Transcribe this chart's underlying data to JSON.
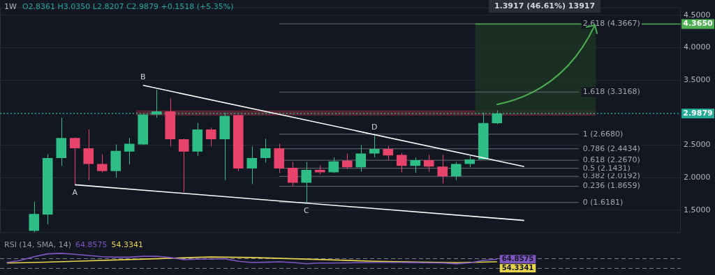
{
  "chart_data": [
    {
      "type": "candlestick",
      "title": "1W",
      "subtitle": "O2.8361 H3.0350 L2.8207 C2.9879 +0.1518 (+5.35%)",
      "categories": [
        null,
        null,
        null,
        null,
        null,
        null,
        null,
        null,
        null,
        null,
        null,
        null,
        null,
        null,
        null,
        null,
        null,
        null,
        null,
        null,
        null,
        null,
        null,
        null,
        null,
        null,
        null,
        null,
        null,
        null,
        null,
        null,
        null,
        null,
        null,
        null,
        null,
        null,
        null,
        null,
        null,
        null,
        null,
        null,
        null,
        null,
        null,
        null,
        null,
        null
      ],
      "ohlc": [
        null,
        null,
        [
          1.18,
          1.63,
          1.16,
          1.44
        ],
        [
          1.43,
          2.36,
          1.28,
          2.3
        ],
        [
          2.3,
          2.92,
          2.18,
          2.61
        ],
        [
          2.61,
          2.62,
          1.89,
          2.45
        ],
        [
          2.45,
          2.74,
          1.96,
          2.21
        ],
        [
          2.21,
          2.36,
          2.08,
          2.1
        ],
        [
          2.1,
          2.51,
          2.0,
          2.41
        ],
        [
          2.4,
          2.61,
          2.2,
          2.52
        ],
        [
          2.51,
          2.97,
          2.5,
          2.97
        ],
        [
          2.97,
          3.35,
          2.92,
          3.02
        ],
        [
          3.02,
          3.22,
          2.48,
          2.59
        ],
        [
          2.59,
          2.6,
          1.78,
          2.4
        ],
        [
          2.4,
          2.84,
          2.33,
          2.74
        ],
        [
          2.74,
          2.77,
          2.48,
          2.59
        ],
        [
          2.59,
          3.0,
          1.96,
          2.95
        ],
        [
          2.96,
          2.97,
          2.1,
          2.14
        ],
        [
          2.14,
          2.48,
          1.9,
          2.3
        ],
        [
          2.3,
          2.6,
          2.23,
          2.45
        ],
        [
          2.45,
          2.52,
          2.07,
          2.14
        ],
        [
          2.15,
          2.24,
          1.87,
          1.92
        ],
        [
          1.92,
          2.24,
          1.618,
          2.12
        ],
        [
          2.12,
          2.19,
          2.05,
          2.08
        ],
        [
          2.08,
          2.31,
          2.07,
          2.25
        ],
        [
          2.26,
          2.37,
          2.13,
          2.16
        ],
        [
          2.16,
          2.5,
          2.09,
          2.37
        ],
        [
          2.37,
          2.65,
          2.31,
          2.44
        ],
        [
          2.44,
          2.49,
          2.27,
          2.34
        ],
        [
          2.35,
          2.38,
          2.08,
          2.18
        ],
        [
          2.18,
          2.31,
          2.07,
          2.27
        ],
        [
          2.27,
          2.35,
          2.09,
          2.17
        ],
        [
          2.17,
          2.35,
          1.91,
          2.02
        ],
        [
          2.02,
          2.24,
          1.96,
          2.21
        ],
        [
          2.21,
          2.33,
          2.16,
          2.28
        ],
        [
          2.28,
          3.0,
          2.28,
          2.84
        ],
        [
          2.8361,
          3.035,
          2.8207,
          2.9879
        ],
        null,
        null,
        null,
        null,
        null,
        null,
        null,
        null,
        null,
        null,
        null,
        null,
        null
      ],
      "colors": [
        null,
        null,
        "#2ebd85",
        "#2ebd85",
        "#2ebd85",
        "#e8436b",
        "#e8436b",
        "#e8436b",
        "#2ebd85",
        "#2ebd85",
        "#2ebd85",
        "#2ebd85",
        "#e8436b",
        "#e8436b",
        "#2ebd85",
        "#e8436b",
        "#2ebd85",
        "#e8436b",
        "#2ebd85",
        "#2ebd85",
        "#e8436b",
        "#e8436b",
        "#2ebd85",
        "#e8436b",
        "#2ebd85",
        "#e8436b",
        "#2ebd85",
        "#2ebd85",
        "#e8436b",
        "#e8436b",
        "#2ebd85",
        "#e8436b",
        "#e8436b",
        "#2ebd85",
        "#2ebd85",
        "#2ebd85",
        "#2ebd85",
        null,
        null,
        null,
        null,
        null,
        null,
        null,
        null,
        null,
        null,
        null,
        null,
        null
      ],
      "series": [
        {
          "type": "line",
          "color": "#ffffff",
          "values": [
            null,
            null,
            null,
            null,
            null,
            null,
            null,
            null,
            null,
            null,
            3.42,
            null,
            null,
            null,
            null,
            null,
            null,
            null,
            null,
            null,
            null,
            null,
            null,
            null,
            null,
            null,
            null,
            null,
            null,
            null,
            null,
            null,
            null,
            null,
            null,
            null,
            null,
            null,
            2.17,
            null,
            null,
            null,
            null,
            null,
            null,
            null,
            null,
            null,
            null,
            null
          ]
        },
        {
          "type": "line",
          "color": "#ffffff",
          "values": [
            null,
            null,
            null,
            null,
            null,
            1.89,
            null,
            null,
            null,
            null,
            null,
            null,
            null,
            null,
            null,
            null,
            null,
            null,
            null,
            null,
            null,
            null,
            null,
            null,
            null,
            null,
            null,
            null,
            null,
            null,
            null,
            null,
            null,
            null,
            null,
            null,
            null,
            null,
            1.34,
            null,
            null,
            null,
            null,
            null,
            null,
            null,
            null,
            null,
            null,
            null
          ]
        }
      ],
      "ylim": [
        1.15,
        4.62
      ],
      "yticks": [
        {
          "value": 1.5,
          "label": "1.5000"
        },
        {
          "value": 2,
          "label": "2.0000"
        },
        {
          "value": 2.5,
          "label": "2.5000"
        },
        {
          "value": 3,
          "label": null
        },
        {
          "value": 3.5,
          "label": "3.5000"
        },
        {
          "value": 4,
          "label": "4.0000"
        },
        {
          "value": 4.5,
          "label": "4.5000"
        }
      ],
      "ref_lines": [
        {
          "axis": "y",
          "value": 1.6181,
          "label": "0 (1.6181)"
        },
        {
          "axis": "y",
          "value": 1.8659,
          "label": "0.236 (1.8659)"
        },
        {
          "axis": "y",
          "value": 2.0192,
          "label": "0.382 (2.0192)"
        },
        {
          "axis": "y",
          "value": 2.1431,
          "label": "0.5 (2.1431)"
        },
        {
          "axis": "y",
          "value": 2.267,
          "label": "0.618 (2.2670)"
        },
        {
          "axis": "y",
          "value": 2.4434,
          "label": "0.786 (2.4434)"
        },
        {
          "axis": "y",
          "value": 2.668,
          "label": "1 (2.6680)"
        },
        {
          "axis": "y",
          "value": 3.3168,
          "label": "1.618 (3.3168)"
        },
        {
          "axis": "y",
          "value": 4.3667,
          "label": "2.618 (4.3667)"
        },
        {
          "axis": "y",
          "value": 4.365,
          "label": "4.3650",
          "color": "#4caf50",
          "line_style": "solid"
        },
        {
          "axis": "y",
          "value": 2.9879,
          "label": "2.9879",
          "color": "#22ab94",
          "line_style": "dotted"
        }
      ],
      "bands": [
        {
          "axis": "y",
          "from": 2.955,
          "to": 3.035,
          "color": "#6e2a36"
        },
        {
          "axis": "y",
          "from": 2.99,
          "to": 4.365,
          "color": "#1d3424"
        }
      ],
      "annotations": [
        "1.3917 (46.61%) 13917",
        {
          "text": "A",
          "y": 1.89
        },
        {
          "text": "B",
          "y": 3.42
        },
        {
          "text": "C",
          "y": 1.618
        },
        {
          "text": "D",
          "y": 2.65
        }
      ],
      "grid": "y",
      "legend": false,
      "tick_labels": "y"
    },
    {
      "type": "line",
      "title": "RSI (14, SMA, 14)",
      "legend": false,
      "tick_labels": false,
      "ref_lines": [
        {
          "axis": "y",
          "value": 70,
          "color": "#787b86",
          "line_style": "dashed"
        },
        {
          "axis": "y",
          "value": 30,
          "color": "#787b86",
          "line_style": "dashed"
        }
      ],
      "categories": [
        null,
        null,
        null,
        null,
        null,
        null,
        null,
        null,
        null,
        null,
        null,
        null,
        null,
        null,
        null,
        null,
        null,
        null,
        null,
        null,
        null,
        null,
        null,
        null,
        null,
        null,
        null,
        null,
        null,
        null,
        null,
        null,
        null,
        null,
        null,
        null,
        null,
        null,
        null,
        null,
        null,
        null,
        null,
        null,
        null,
        null,
        null,
        null,
        null,
        null
      ],
      "series": [
        {
          "color": "#7e57c2",
          "values": [
            51.6,
            60,
            75,
            86.7,
            89,
            85,
            80,
            75,
            73.3,
            73.3,
            76.7,
            77.2,
            71.7,
            63.3,
            65,
            65,
            66.7,
            56.6,
            51.6,
            52.5,
            54.1,
            51.6,
            46.6,
            49.3,
            49.3,
            50,
            50.8,
            51.6,
            51.6,
            51.6,
            51,
            50,
            49.3,
            46,
            50,
            60,
            64.8575,
            null,
            null,
            null,
            null,
            null,
            null,
            null,
            null,
            null,
            null,
            null,
            null,
            null
          ],
          "value_labels": [
            null,
            null,
            null,
            null,
            null,
            null,
            null,
            null,
            null,
            null,
            null,
            null,
            null,
            null,
            null,
            null,
            null,
            null,
            null,
            null,
            null,
            null,
            null,
            null,
            null,
            null,
            null,
            null,
            null,
            null,
            null,
            null,
            null,
            null,
            null,
            null,
            "64.8575",
            null,
            null,
            null,
            null,
            null,
            null,
            null,
            null,
            null,
            null,
            null,
            null,
            null
          ]
        },
        {
          "color": "#e8d44d",
          "values": [
            49.3,
            null,
            51.6,
            null,
            null,
            56.6,
            null,
            null,
            61.7,
            null,
            null,
            66.7,
            null,
            null,
            72.5,
            74,
            null,
            null,
            71.7,
            null,
            null,
            66.7,
            null,
            null,
            61.7,
            null,
            null,
            56.6,
            null,
            null,
            53.3,
            null,
            null,
            50.8,
            null,
            null,
            54.3341,
            null,
            null,
            null,
            null,
            null,
            null,
            null,
            null,
            null,
            null,
            null,
            null,
            null
          ],
          "value_labels": [
            null,
            null,
            null,
            null,
            null,
            null,
            null,
            null,
            null,
            null,
            null,
            null,
            null,
            null,
            null,
            null,
            null,
            null,
            null,
            null,
            null,
            null,
            null,
            null,
            null,
            null,
            null,
            null,
            null,
            null,
            null,
            null,
            null,
            null,
            null,
            null,
            "54.3341",
            null,
            null,
            null,
            null,
            null,
            null,
            null,
            null,
            null,
            null,
            null,
            null,
            null
          ]
        }
      ]
    }
  ]
}
